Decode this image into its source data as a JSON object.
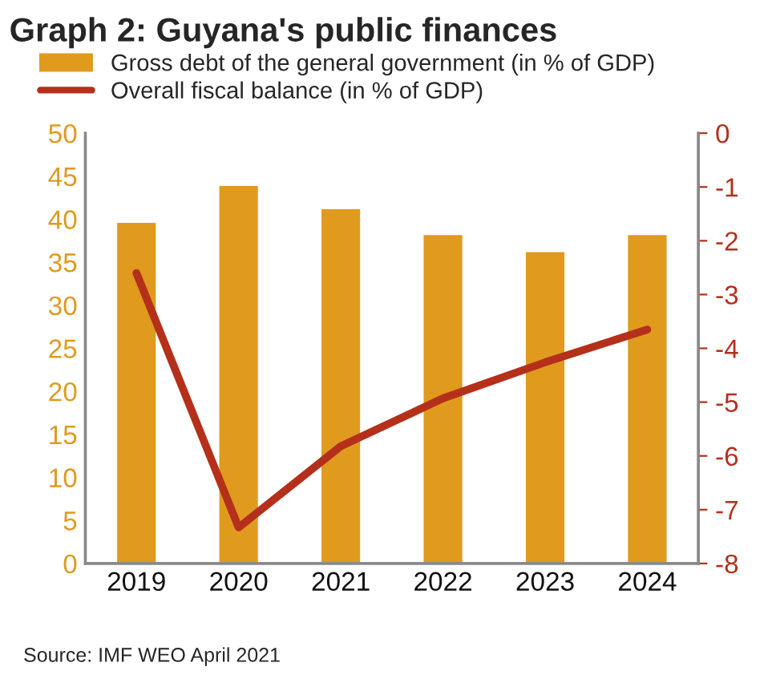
{
  "chart_data": {
    "type": "bar",
    "title": "Graph 2: Guyana's public finances",
    "categories": [
      "2019",
      "2020",
      "2021",
      "2022",
      "2023",
      "2024"
    ],
    "series": [
      {
        "name": "Gross debt of the general government (in % of GDP)",
        "color": "#e09a1e",
        "values": [
          39.7,
          44.0,
          41.3,
          38.3,
          36.3,
          38.3
        ]
      },
      {
        "name": "Overall fiscal balance (in % of GDP)",
        "type": "line",
        "axis": "y2",
        "color": "#b5301a",
        "values": [
          -2.6,
          -7.33,
          -5.82,
          -4.93,
          -4.26,
          -3.65
        ]
      }
    ],
    "ylim": [
      0,
      50
    ],
    "yticks": [
      0,
      5,
      10,
      15,
      20,
      25,
      30,
      35,
      40,
      45,
      50
    ],
    "y2lim": [
      -8,
      0
    ],
    "y2ticks": [
      -8,
      -7,
      -6,
      -5,
      -4,
      -3,
      -2,
      -1,
      0
    ],
    "grid": false,
    "legend": "top",
    "marker": "none",
    "line_style": "solid",
    "annotations": [
      "Source: IMF WEO April 2021"
    ]
  }
}
